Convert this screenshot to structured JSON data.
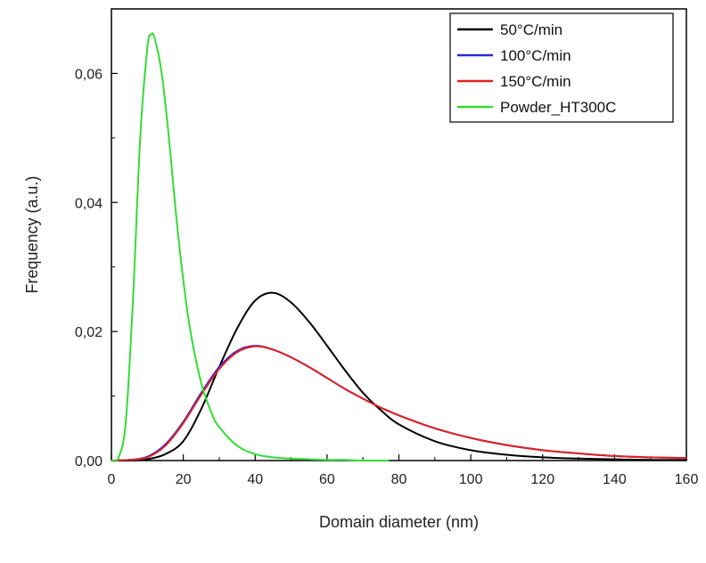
{
  "chart_data": {
    "type": "line",
    "xlabel": "Domain diameter (nm)",
    "ylabel": "Frequency (a.u.)",
    "xlim": [
      0,
      160
    ],
    "ylim": [
      0,
      0.07
    ],
    "x_ticks": [
      "0",
      "20",
      "40",
      "60",
      "80",
      "100",
      "120",
      "140",
      "160"
    ],
    "y_ticks": [
      "0,00",
      "0,02",
      "0,04",
      "0,06"
    ],
    "legend_position": "top-right",
    "grid": false,
    "series": [
      {
        "name": "50°C/min",
        "color": "#000000",
        "x": [
          0,
          5,
          10,
          15,
          20,
          25,
          30,
          35,
          40,
          45,
          50,
          55,
          60,
          65,
          70,
          75,
          80,
          90,
          100,
          110,
          120,
          130,
          140,
          150,
          160
        ],
        "y": [
          0,
          0,
          0.0002,
          0.001,
          0.003,
          0.008,
          0.0145,
          0.0205,
          0.0248,
          0.026,
          0.0245,
          0.0215,
          0.0178,
          0.014,
          0.0105,
          0.0078,
          0.0056,
          0.003,
          0.0016,
          0.0009,
          0.0005,
          0.0003,
          0.0002,
          0.0001,
          0.0001
        ]
      },
      {
        "name": "100°C/min",
        "color": "#2a2adc",
        "x": [
          0,
          5,
          10,
          15,
          20,
          25,
          30,
          35,
          40,
          45,
          50,
          55,
          60,
          65,
          70,
          75,
          80,
          90,
          100,
          110,
          120,
          130,
          140,
          150,
          160
        ],
        "y": [
          0,
          0.0001,
          0.0006,
          0.0025,
          0.006,
          0.0105,
          0.0145,
          0.017,
          0.0178,
          0.0172,
          0.016,
          0.0145,
          0.0128,
          0.0111,
          0.0096,
          0.0082,
          0.007,
          0.005,
          0.0035,
          0.0024,
          0.0016,
          0.0011,
          0.0007,
          0.0005,
          0.0004
        ]
      },
      {
        "name": "150°C/min",
        "color": "#e02020",
        "x": [
          0,
          5,
          10,
          15,
          20,
          25,
          30,
          35,
          40,
          45,
          50,
          55,
          60,
          65,
          70,
          75,
          80,
          90,
          100,
          110,
          120,
          130,
          140,
          150,
          160
        ],
        "y": [
          0,
          0.0001,
          0.0005,
          0.0023,
          0.0058,
          0.0102,
          0.0142,
          0.0168,
          0.0177,
          0.0172,
          0.016,
          0.0145,
          0.0128,
          0.0111,
          0.0096,
          0.0082,
          0.007,
          0.005,
          0.0035,
          0.0024,
          0.0016,
          0.0011,
          0.0007,
          0.0005,
          0.0004
        ]
      },
      {
        "name": "Powder_HT300C",
        "color": "#33dd33",
        "x": [
          0,
          2,
          4,
          6,
          8,
          10,
          11,
          12,
          14,
          16,
          18,
          20,
          22,
          25,
          28,
          30,
          35,
          40,
          45,
          50,
          55,
          60,
          65,
          70,
          77
        ],
        "y": [
          0,
          0.0005,
          0.006,
          0.025,
          0.05,
          0.064,
          0.066,
          0.0655,
          0.06,
          0.05,
          0.038,
          0.028,
          0.02,
          0.012,
          0.0072,
          0.0052,
          0.0023,
          0.001,
          0.0005,
          0.0003,
          0.0002,
          0.0001,
          0.0001,
          0,
          0
        ]
      }
    ]
  }
}
